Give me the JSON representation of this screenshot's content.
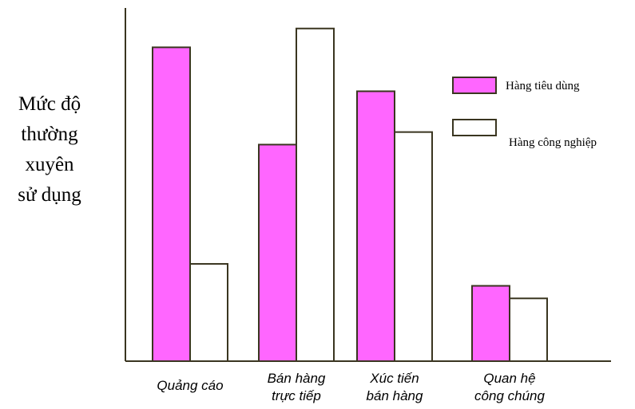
{
  "chart_data": {
    "type": "bar",
    "ylabel_lines": [
      "Mức độ",
      "thường",
      "xuyên",
      "sử dụng"
    ],
    "categories": [
      [
        "Quảng cáo"
      ],
      [
        "Bán hàng",
        "trực tiếp"
      ],
      [
        "Xúc tiến",
        "bán hàng"
      ],
      [
        "Quan hệ",
        "công chúng"
      ]
    ],
    "series": [
      {
        "name": "Hàng tiêu dùng",
        "values": [
          100,
          69,
          86,
          24
        ],
        "color": "#ff66ff"
      },
      {
        "name": "Hàng công nghiệp",
        "values": [
          31,
          106,
          73,
          20
        ],
        "color": "#ffffff"
      }
    ],
    "ylim": [
      0,
      110
    ],
    "grid": false,
    "legend_position": "right"
  }
}
